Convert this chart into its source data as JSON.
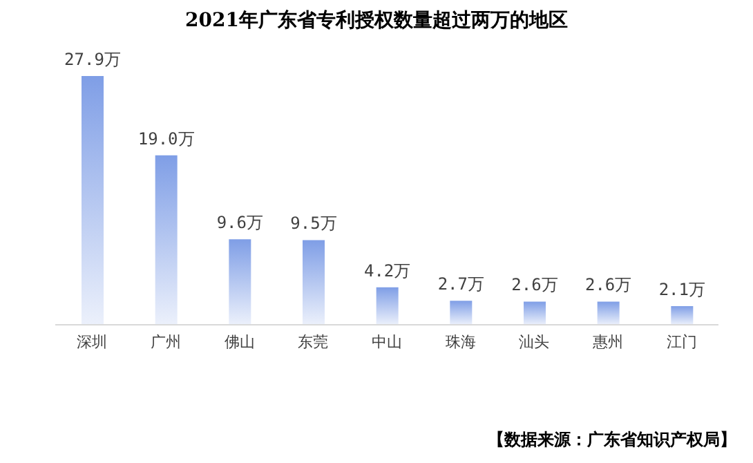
{
  "chart_data": {
    "type": "bar",
    "title": "2021年广东省专利授权数量超过两万的地区",
    "categories": [
      "深圳",
      "广州",
      "佛山",
      "东莞",
      "中山",
      "珠海",
      "汕头",
      "惠州",
      "江门"
    ],
    "values": [
      27.9,
      19.0,
      9.6,
      9.5,
      4.2,
      2.7,
      2.6,
      2.6,
      2.1
    ],
    "value_labels": [
      "27.9万",
      "19.0万",
      "9.6万",
      "9.5万",
      "4.2万",
      "2.7万",
      "2.6万",
      "2.6万",
      "2.1万"
    ],
    "color": "#7f9ee6",
    "annotations": [
      "【数据来源：广东省知识产权局】"
    ]
  }
}
